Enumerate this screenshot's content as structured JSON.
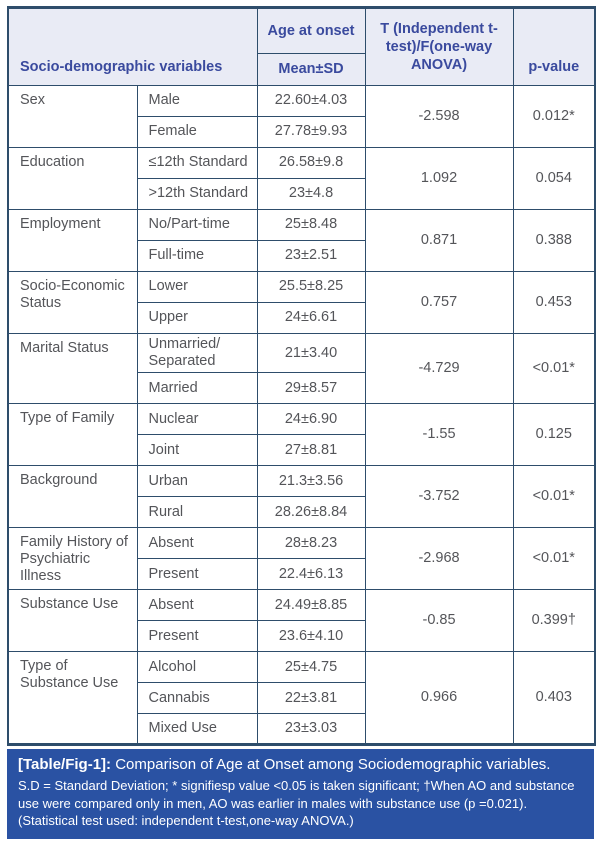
{
  "figure": {
    "header": {
      "variables_label": "Socio-demographic variables",
      "age_at_onset_label": "Age at onset",
      "mean_sd_label": "Mean±SD",
      "test_label": "T (Independent t-test)/F(one-way ANOVA)",
      "p_value_label": "p-value"
    },
    "groups": [
      {
        "variable": "Sex",
        "rows": [
          {
            "category": "Male",
            "mean_sd": "22.60±4.03"
          },
          {
            "category": "Female",
            "mean_sd": "27.78±9.93"
          }
        ],
        "statistic": "-2.598",
        "p_value": "0.012*"
      },
      {
        "variable": "Education",
        "rows": [
          {
            "category": "≤12th Standard",
            "mean_sd": "26.58±9.8"
          },
          {
            "category": ">12th Standard",
            "mean_sd": "23±4.8"
          }
        ],
        "statistic": "1.092",
        "p_value": "0.054"
      },
      {
        "variable": "Employment",
        "rows": [
          {
            "category": "No/Part-time",
            "mean_sd": "25±8.48"
          },
          {
            "category": "Full-time",
            "mean_sd": "23±2.51"
          }
        ],
        "statistic": "0.871",
        "p_value": "0.388"
      },
      {
        "variable": "Socio-Economic Status",
        "rows": [
          {
            "category": "Lower",
            "mean_sd": "25.5±8.25"
          },
          {
            "category": "Upper",
            "mean_sd": "24±6.61"
          }
        ],
        "statistic": "0.757",
        "p_value": "0.453"
      },
      {
        "variable": "Marital Status",
        "rows": [
          {
            "category": "Unmarried/ Separated",
            "mean_sd": "21±3.40"
          },
          {
            "category": "Married",
            "mean_sd": "29±8.57"
          }
        ],
        "statistic": "-4.729",
        "p_value": "<0.01*"
      },
      {
        "variable": "Type of Family",
        "rows": [
          {
            "category": "Nuclear",
            "mean_sd": "24±6.90"
          },
          {
            "category": "Joint",
            "mean_sd": "27±8.81"
          }
        ],
        "statistic": "-1.55",
        "p_value": "0.125"
      },
      {
        "variable": "Background",
        "rows": [
          {
            "category": "Urban",
            "mean_sd": "21.3±3.56"
          },
          {
            "category": "Rural",
            "mean_sd": "28.26±8.84"
          }
        ],
        "statistic": "-3.752",
        "p_value": "<0.01*"
      },
      {
        "variable": "Family History of Psychiatric Illness",
        "rows": [
          {
            "category": "Absent",
            "mean_sd": "28±8.23"
          },
          {
            "category": "Present",
            "mean_sd": "22.4±6.13"
          }
        ],
        "statistic": "-2.968",
        "p_value": "<0.01*"
      },
      {
        "variable": "Substance Use",
        "rows": [
          {
            "category": "Absent",
            "mean_sd": "24.49±8.85"
          },
          {
            "category": "Present",
            "mean_sd": "23.6±4.10"
          }
        ],
        "statistic": "-0.85",
        "p_value": "0.399†"
      },
      {
        "variable": "Type of Substance Use",
        "rows": [
          {
            "category": "Alcohol",
            "mean_sd": "25±4.75"
          },
          {
            "category": "Cannabis",
            "mean_sd": "22±3.81"
          },
          {
            "category": "Mixed Use",
            "mean_sd": "23±3.03"
          }
        ],
        "statistic": "0.966",
        "p_value": "0.403"
      }
    ],
    "caption": {
      "tag": "[Table/Fig-1]:",
      "title": "Comparison of Age at Onset among Sociodemographic variables.",
      "note": "S.D = Standard Deviation; * signifiesp value <0.05 is taken significant; †When AO and substance use were compared only in men, AO was earlier in males with substance use (p =0.021).(Statistical test used: independent t-test,one-way ANOVA.)"
    },
    "colors": {
      "header_bg": "#e9ebf5",
      "header_text": "#3a4a9e",
      "border": "#2e4d6b",
      "body_text": "#545559",
      "caption_bg": "#2a52a3",
      "caption_text": "#ffffff"
    }
  }
}
